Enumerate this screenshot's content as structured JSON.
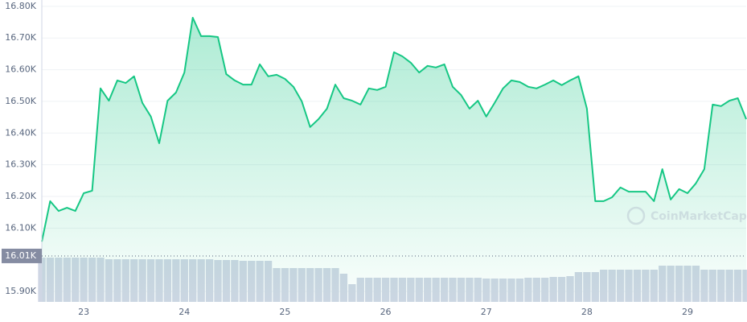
{
  "chart_data": {
    "type": "area",
    "watermark": "CoinMarketCap",
    "color": "#16c784",
    "categories": [
      null,
      null,
      null,
      null,
      null,
      "23",
      null,
      null,
      null,
      null,
      null,
      null,
      null,
      null,
      null,
      null,
      null,
      "24",
      null,
      null,
      null,
      null,
      null,
      null,
      null,
      null,
      null,
      null,
      null,
      "25",
      null,
      null,
      null,
      null,
      null,
      null,
      null,
      null,
      null,
      null,
      null,
      "26",
      null,
      null,
      null,
      null,
      null,
      null,
      null,
      null,
      null,
      null,
      null,
      "27",
      null,
      null,
      null,
      null,
      null,
      null,
      null,
      null,
      null,
      null,
      null,
      "28",
      null,
      null,
      null,
      null,
      null,
      null,
      null,
      null,
      null,
      null,
      null,
      "29",
      null,
      null,
      null,
      null,
      null,
      null,
      null
    ],
    "values": [
      16.057,
      16.185,
      16.154,
      16.164,
      16.154,
      16.21,
      16.218,
      16.541,
      16.502,
      16.566,
      16.558,
      16.579,
      16.495,
      16.452,
      16.368,
      16.502,
      16.528,
      16.591,
      16.764,
      16.706,
      16.706,
      16.703,
      16.586,
      16.566,
      16.553,
      16.553,
      16.617,
      16.579,
      16.584,
      16.571,
      16.546,
      16.5,
      16.419,
      16.444,
      16.477,
      16.553,
      16.51,
      16.502,
      16.49,
      16.541,
      16.536,
      16.546,
      16.655,
      16.642,
      16.622,
      16.591,
      16.612,
      16.607,
      16.617,
      16.546,
      16.52,
      16.477,
      16.502,
      16.452,
      16.495,
      16.541,
      16.566,
      16.561,
      16.546,
      16.541,
      16.553,
      16.566,
      16.551,
      16.566,
      16.579,
      16.477,
      16.185,
      16.185,
      16.197,
      16.228,
      16.215,
      16.215,
      16.215,
      16.185,
      16.286,
      16.19,
      16.223,
      16.21,
      16.241,
      16.286,
      16.49,
      16.485,
      16.502,
      16.51,
      16.444
    ],
    "volume_values": [
      55,
      55,
      55,
      55,
      55,
      55,
      55,
      55,
      53,
      53,
      53,
      53,
      53,
      53,
      53,
      53,
      53,
      53,
      53,
      53,
      53,
      52,
      52,
      52,
      51,
      51,
      51,
      51,
      42,
      42,
      42,
      42,
      42,
      42,
      42,
      42,
      35,
      22,
      30,
      30,
      30,
      30,
      30,
      30,
      30,
      30,
      30,
      30,
      30,
      30,
      30,
      30,
      30,
      29,
      29,
      29,
      29,
      29,
      30,
      30,
      30,
      31,
      31,
      32,
      37,
      37,
      37,
      40,
      40,
      40,
      40,
      40,
      40,
      40,
      45,
      45,
      45,
      45,
      45,
      40,
      40,
      40,
      40,
      40,
      40
    ],
    "volume_lim": [
      0,
      100
    ],
    "ylim": [
      15.867,
      16.82
    ],
    "yticks": [
      {
        "value": 16.8,
        "label": "16.80K"
      },
      {
        "value": 16.7,
        "label": "16.70K"
      },
      {
        "value": 16.6,
        "label": "16.60K"
      },
      {
        "value": 16.5,
        "label": "16.50K"
      },
      {
        "value": 16.4,
        "label": "16.40K"
      },
      {
        "value": 16.3,
        "label": "16.30K"
      },
      {
        "value": 16.2,
        "label": "16.20K"
      },
      {
        "value": 16.1,
        "label": "16.10K"
      },
      {
        "value": 15.9,
        "label": "15.90K"
      }
    ],
    "price_marker": {
      "value": 16.012,
      "label": "16.01K"
    },
    "grid": true
  }
}
